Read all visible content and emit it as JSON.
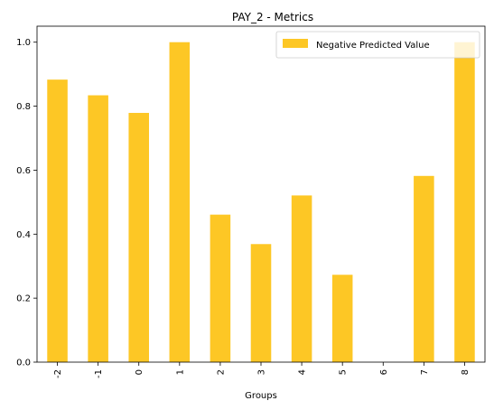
{
  "chart_data": {
    "type": "bar",
    "title": "PAY_2 - Metrics",
    "xlabel": "Groups",
    "ylabel": "",
    "categories": [
      "-2",
      "-1",
      "0",
      "1",
      "2",
      "3",
      "4",
      "5",
      "6",
      "7",
      "8"
    ],
    "series": [
      {
        "name": "Negative Predicted Value",
        "color": "#fdc725",
        "values": [
          0.883,
          0.834,
          0.779,
          1.0,
          0.461,
          0.369,
          0.521,
          0.273,
          0.0,
          0.582,
          1.0
        ]
      }
    ],
    "ylim": [
      0,
      1.05
    ],
    "yticks": [
      "0.0",
      "0.2",
      "0.4",
      "0.6",
      "0.8",
      "1.0"
    ],
    "ytick_values": [
      0,
      0.2,
      0.4,
      0.6,
      0.8,
      1.0
    ],
    "grid": false,
    "legend_position": "top-right"
  }
}
